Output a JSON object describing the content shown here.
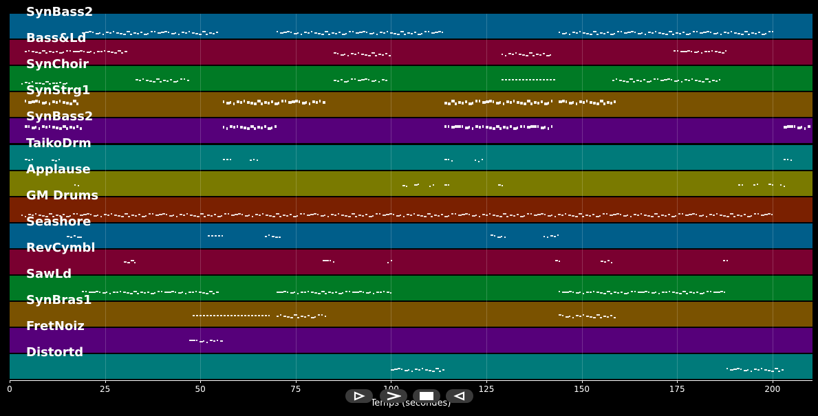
{
  "tracks": [
    {
      "name": "SynBass2",
      "color": "#005e8a"
    },
    {
      "name": "Bass&Ld",
      "color": "#7a0030"
    },
    {
      "name": "SynChoir",
      "color": "#007a25"
    },
    {
      "name": "SynStrg1",
      "color": "#7a5200"
    },
    {
      "name": "SynBass2",
      "color": "#56007a"
    },
    {
      "name": "TaikoDrm",
      "color": "#007a7a"
    },
    {
      "name": "Applause",
      "color": "#7a7a00"
    },
    {
      "name": "GM Drums",
      "color": "#7a2000"
    },
    {
      "name": "Seashore",
      "color": "#005e8a"
    },
    {
      "name": "RevCymbl",
      "color": "#7a0030"
    },
    {
      "name": "SawLd",
      "color": "#007a25"
    },
    {
      "name": "SynBras1",
      "color": "#7a5200"
    },
    {
      "name": "FretNoiz",
      "color": "#56007a"
    },
    {
      "name": "Distortd",
      "color": "#007a7a"
    }
  ],
  "axis": {
    "xlabel": "Temps (secondes)",
    "ticks": [
      "0",
      "25",
      "50",
      "75",
      "100",
      "125",
      "150",
      "175",
      "200"
    ],
    "xmax": 210.5
  },
  "controls": [
    {
      "name": "play-forward-button",
      "icon": "play-outline-icon"
    },
    {
      "name": "next-button",
      "icon": "chevron-right-icon"
    },
    {
      "name": "stop-button",
      "icon": "stop-icon"
    },
    {
      "name": "rewind-button",
      "icon": "play-back-outline-icon"
    }
  ],
  "segments": [
    [
      [
        19,
        55,
        0.75
      ],
      [
        70,
        114,
        0.75
      ],
      [
        144,
        200,
        0.75
      ]
    ],
    [
      [
        4,
        31,
        0.45
      ],
      [
        85,
        100,
        0.55
      ],
      [
        129,
        142,
        0.55
      ],
      [
        174,
        188,
        0.45
      ]
    ],
    [
      [
        3,
        15,
        0.65
      ],
      [
        33,
        47,
        0.55
      ],
      [
        85,
        99,
        0.55
      ],
      [
        129,
        143,
        0.55
      ],
      [
        158,
        186,
        0.55
      ]
    ],
    [
      [
        4,
        18,
        0.35
      ],
      [
        56,
        83,
        0.35
      ],
      [
        114,
        142,
        0.35
      ],
      [
        144,
        159,
        0.35
      ]
    ],
    [
      [
        4,
        19,
        0.3
      ],
      [
        56,
        70,
        0.3
      ],
      [
        114,
        142,
        0.3
      ],
      [
        203,
        210,
        0.3
      ]
    ],
    [
      [
        4,
        6,
        0.6
      ],
      [
        11,
        13,
        0.6
      ],
      [
        56,
        58,
        0.6
      ],
      [
        63,
        65,
        0.6
      ],
      [
        114,
        116,
        0.6
      ],
      [
        122,
        124,
        0.6
      ],
      [
        203,
        205,
        0.6
      ]
    ],
    [
      [
        17,
        18,
        0.55
      ],
      [
        103,
        104,
        0.55
      ],
      [
        106,
        107,
        0.55
      ],
      [
        110,
        111,
        0.55
      ],
      [
        114,
        115,
        0.55
      ],
      [
        128,
        129,
        0.55
      ],
      [
        191,
        192,
        0.55
      ],
      [
        195,
        196,
        0.55
      ],
      [
        199,
        200,
        0.55
      ],
      [
        202,
        203,
        0.55
      ]
    ],
    [
      [
        3,
        200,
        0.7
      ]
    ],
    [
      [
        15,
        19,
        0.5
      ],
      [
        52,
        56,
        0.5
      ],
      [
        67,
        71,
        0.5
      ],
      [
        126,
        130,
        0.5
      ],
      [
        140,
        144,
        0.5
      ]
    ],
    [
      [
        30,
        33,
        0.45
      ],
      [
        82,
        85,
        0.45
      ],
      [
        99,
        100,
        0.45
      ],
      [
        143,
        144,
        0.45
      ],
      [
        155,
        158,
        0.45
      ],
      [
        187,
        188,
        0.45
      ]
    ],
    [
      [
        19,
        55,
        0.65
      ],
      [
        70,
        100,
        0.65
      ],
      [
        144,
        188,
        0.65
      ]
    ],
    [
      [
        48,
        68,
        0.55
      ],
      [
        70,
        83,
        0.55
      ],
      [
        144,
        159,
        0.55
      ]
    ],
    [
      [
        47,
        56,
        0.5
      ]
    ],
    [
      [
        100,
        114,
        0.6
      ],
      [
        188,
        203,
        0.6
      ]
    ]
  ]
}
